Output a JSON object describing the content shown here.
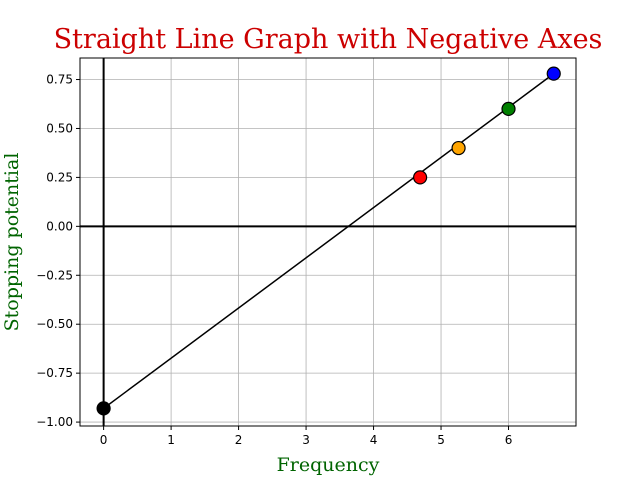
{
  "colors": {
    "title": "#cc0000",
    "axis_label": "#006400",
    "grid": "#b0b0b0",
    "line": "#000000",
    "zero_axes": "#000000"
  },
  "chart_data": {
    "type": "line",
    "title": "Straight Line Graph with Negative Axes",
    "xlabel": "Frequency",
    "ylabel": "Stopping potential",
    "xlim": [
      -0.35,
      7.0
    ],
    "ylim": [
      -1.02,
      0.86
    ],
    "xticks": [
      0,
      1,
      2,
      3,
      4,
      5,
      6
    ],
    "yticks": [
      -1.0,
      -0.75,
      -0.5,
      -0.25,
      0.0,
      0.25,
      0.5,
      0.75
    ],
    "ytick_labels": [
      "−1.00",
      "−0.75",
      "−0.50",
      "−0.25",
      "0.00",
      "0.25",
      "0.50",
      "0.75"
    ],
    "grid": true,
    "line": {
      "x": [
        0,
        6.67
      ],
      "y": [
        -0.93,
        0.78
      ]
    },
    "points": [
      {
        "x": 0.0,
        "y": -0.93,
        "color": "#000000"
      },
      {
        "x": 4.69,
        "y": 0.25,
        "color": "#ff0000"
      },
      {
        "x": 5.26,
        "y": 0.4,
        "color": "#ffa500"
      },
      {
        "x": 6.0,
        "y": 0.6,
        "color": "#008000"
      },
      {
        "x": 6.67,
        "y": 0.78,
        "color": "#0000ff"
      }
    ]
  }
}
